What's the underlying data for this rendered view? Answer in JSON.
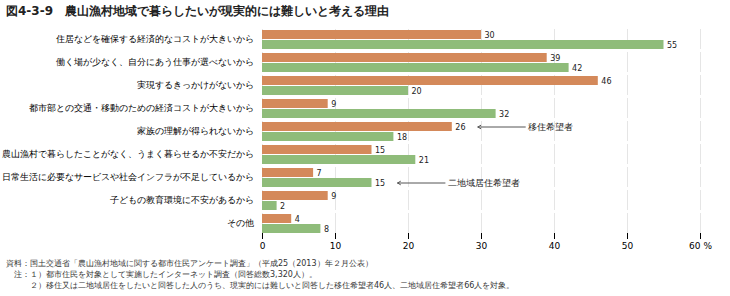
{
  "chart_data": {
    "type": "bar",
    "orientation": "horizontal",
    "title": "図4-3-9　農山漁村地域で暮らしたいが現実的には難しいと考える理由",
    "categories": [
      "住居などを確保する経済的なコストが大きいから",
      "働く場が少なく、自分にあう仕事が選べないから",
      "実現するきっかけがないから",
      "都市部との交通・移動のための経済コストが大きいから",
      "家族の理解が得られないから",
      "農山漁村で暮らしたことがなく、うまく暮らせるか不安だから",
      "日常生活に必要なサービスや社会インフラが不足しているから",
      "子どもの教育環境に不安があるから",
      "その他"
    ],
    "series": [
      {
        "name": "移住希望者",
        "color": "#d4895a",
        "values": [
          30,
          39,
          46,
          9,
          26,
          15,
          7,
          9,
          4
        ]
      },
      {
        "name": "二地域居住希望者",
        "color": "#8fbc7a",
        "values": [
          55,
          42,
          20,
          32,
          18,
          21,
          15,
          2,
          8
        ]
      }
    ],
    "xlim": [
      0,
      60
    ],
    "xticks": [
      0,
      10,
      20,
      30,
      40,
      50,
      {
        "value": 60,
        "label": "60 %"
      }
    ],
    "grid": true,
    "data_labels": true,
    "legend": false,
    "annotations": [
      {
        "text": "移住希望者",
        "series": "移住希望者",
        "category": "家族の理解が得られないから"
      },
      {
        "text": "二地域居住希望者",
        "series": "二地域居住希望者",
        "category": "日常生活に必要なサービスや社会インフラが不足しているから"
      }
    ],
    "notes": [
      "資料：国土交通省「農山漁村地域に関する都市住民アンケート調査」（平成25（2013）年２月公表）",
      "　注：１）都市住民を対象として実施したインターネット調査（回答総数3,320人）。",
      "　　　２）移住又は二地域居住をしたいと回答した人のうち、現実的には難しいと回答した移住希望者46人、二地域居住希望者66人を対象。"
    ]
  }
}
